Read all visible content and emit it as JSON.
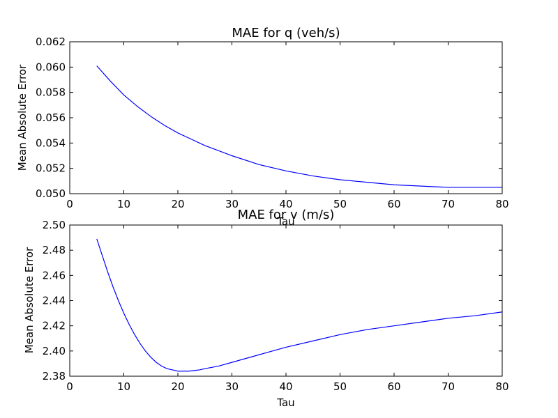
{
  "chart_data": [
    {
      "type": "line",
      "title": "MAE for q (veh/s)",
      "xlabel": "Tau",
      "ylabel": "Mean Absolute Error",
      "xlim": [
        0,
        80
      ],
      "ylim": [
        0.05,
        0.062
      ],
      "xticks": [
        "0",
        "10",
        "20",
        "30",
        "40",
        "50",
        "60",
        "70",
        "80"
      ],
      "yticks": [
        "0.050",
        "0.052",
        "0.054",
        "0.056",
        "0.058",
        "0.060",
        "0.062"
      ],
      "grid": false,
      "color": "#0000ff",
      "x": [
        5,
        7.5,
        10,
        12.5,
        15,
        17.5,
        20,
        22.5,
        25,
        27.5,
        30,
        35,
        40,
        45,
        50,
        55,
        60,
        65,
        70,
        75,
        80
      ],
      "y": [
        0.0601,
        0.0589,
        0.0578,
        0.0569,
        0.0561,
        0.0554,
        0.0548,
        0.0543,
        0.0538,
        0.0534,
        0.053,
        0.0523,
        0.0518,
        0.0514,
        0.0511,
        0.0509,
        0.0507,
        0.0506,
        0.0505,
        0.0505,
        0.0505
      ]
    },
    {
      "type": "line",
      "title": "MAE for v (m/s)",
      "xlabel": "Tau",
      "ylabel": "Mean Absolute Error",
      "xlim": [
        0,
        80
      ],
      "ylim": [
        2.38,
        2.5
      ],
      "xticks": [
        "0",
        "10",
        "20",
        "30",
        "40",
        "50",
        "60",
        "70",
        "80"
      ],
      "yticks": [
        "2.38",
        "2.40",
        "2.42",
        "2.44",
        "2.46",
        "2.48",
        "2.50"
      ],
      "grid": false,
      "color": "#0000ff",
      "x": [
        5,
        6,
        7,
        8,
        9,
        10,
        11,
        12,
        13,
        14,
        15,
        16,
        17,
        18,
        19,
        20,
        21,
        22,
        23,
        24,
        25,
        27.5,
        30,
        35,
        40,
        45,
        50,
        55,
        60,
        65,
        70,
        75,
        80
      ],
      "y": [
        2.489,
        2.476,
        2.463,
        2.451,
        2.44,
        2.43,
        2.421,
        2.413,
        2.406,
        2.4,
        2.395,
        2.391,
        2.388,
        2.386,
        2.385,
        2.384,
        2.384,
        2.384,
        2.3845,
        2.385,
        2.386,
        2.388,
        2.391,
        2.397,
        2.403,
        2.408,
        2.413,
        2.417,
        2.42,
        2.423,
        2.426,
        2.428,
        2.431
      ]
    }
  ]
}
